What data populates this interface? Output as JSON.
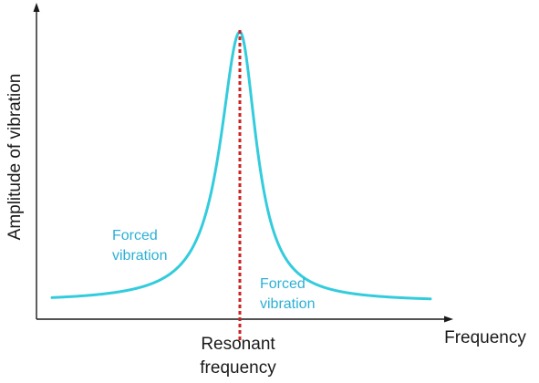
{
  "diagram": {
    "y_axis_label": "Amplitude of vibration",
    "x_axis_label": "Frequency",
    "resonance_label_line1": "Resonant",
    "resonance_label_line2": "frequency",
    "left_curve_label_line1": "Forced",
    "left_curve_label_line2": "vibration",
    "right_curve_label_line1": "Forced",
    "right_curve_label_line2": "vibration"
  },
  "colors": {
    "curve": "#33ccdd",
    "resonance_line": "#cc2222",
    "axis": "#1a1a1a",
    "label_text": "#2bb0d6"
  },
  "chart_data": {
    "type": "line",
    "description_units": "relative",
    "x_axis_label": "Frequency",
    "y_axis_label": "Amplitude of vibration",
    "marker": "Resonant frequency"
  }
}
